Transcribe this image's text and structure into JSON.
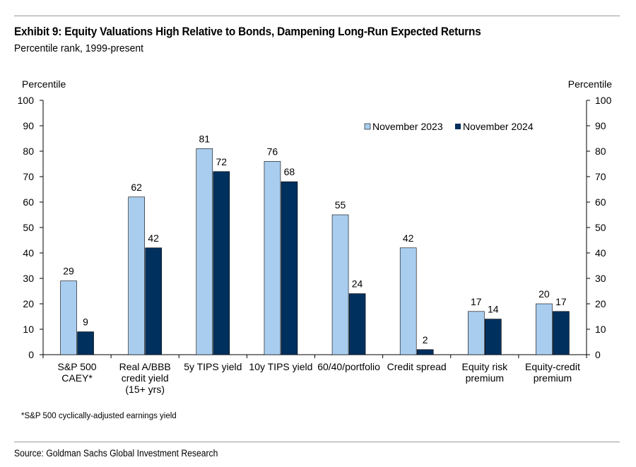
{
  "header": {
    "title": "Exhibit 9: Equity Valuations High Relative to Bonds, Dampening Long-Run Expected Returns",
    "subtitle": "Percentile rank, 1999-present"
  },
  "footnote": "*S&P 500 cyclically-adjusted earnings yield",
  "source": "Source: Goldman Sachs Global Investment Research",
  "colors": {
    "series_2023": "#a9cdef",
    "series_2024": "#00305e",
    "axis": "#000000",
    "rule": "#9a9a9a"
  },
  "chart_data": {
    "type": "bar",
    "title": "Exhibit 9: Equity Valuations High Relative to Bonds, Dampening Long-Run Expected Returns",
    "subtitle": "Percentile rank, 1999-present",
    "ylabel_left": "Percentile",
    "ylabel_right": "Percentile",
    "ylim": [
      0,
      100
    ],
    "yticks": [
      0,
      10,
      20,
      30,
      40,
      50,
      60,
      70,
      80,
      90,
      100
    ],
    "grid": false,
    "legend_position": "top-right",
    "categories": [
      [
        "S&P 500",
        "CAEY*"
      ],
      [
        "Real A/BBB",
        "credit yield",
        "(15+ yrs)"
      ],
      [
        "5y TIPS yield"
      ],
      [
        "10y TIPS yield"
      ],
      [
        "60/40/portfolio"
      ],
      [
        "Credit spread"
      ],
      [
        "Equity risk",
        "premium"
      ],
      [
        "Equity-credit",
        "premium"
      ]
    ],
    "series": [
      {
        "name": "November 2023",
        "values": [
          29,
          62,
          81,
          76,
          55,
          42,
          17,
          20
        ],
        "color": "#a9cdef"
      },
      {
        "name": "November 2024",
        "values": [
          9,
          42,
          72,
          68,
          24,
          2,
          14,
          17
        ],
        "color": "#00305e"
      }
    ]
  }
}
